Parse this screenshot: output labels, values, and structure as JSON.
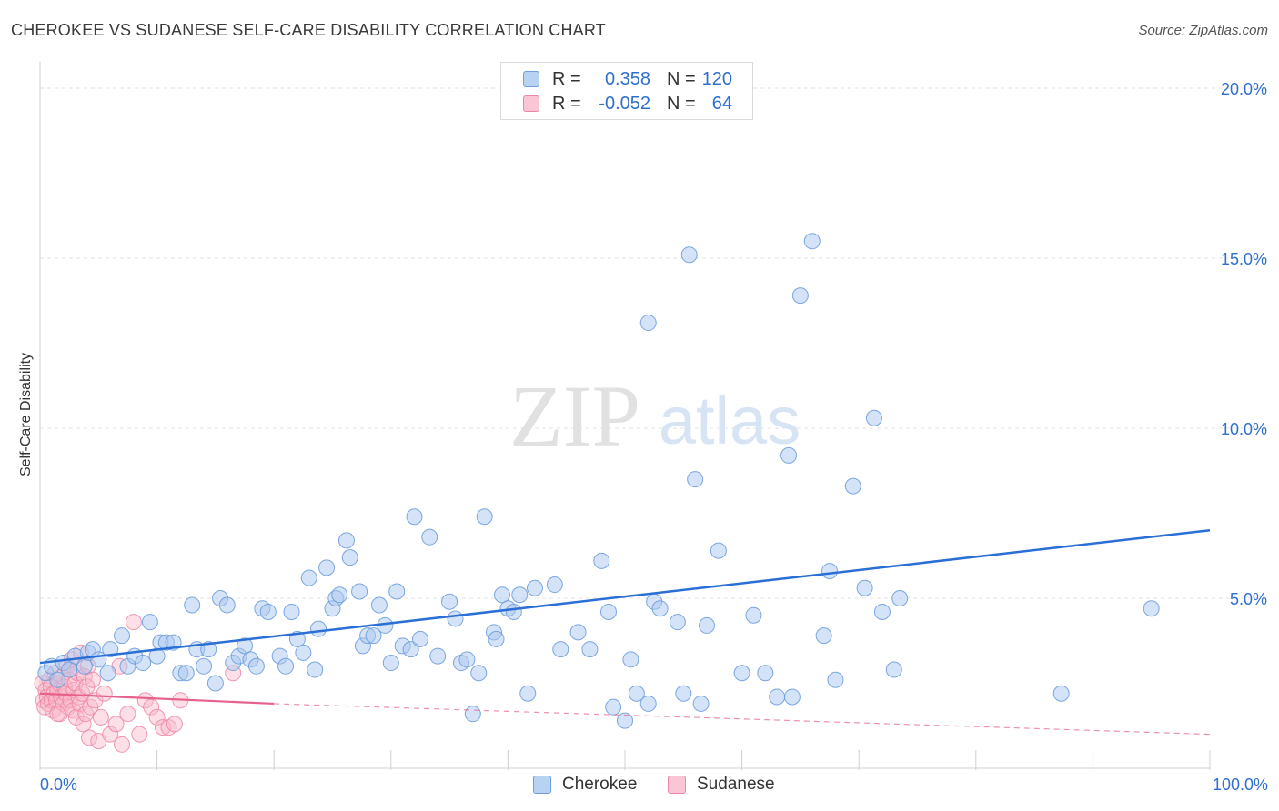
{
  "header": {
    "title": "CHEROKEE VS SUDANESE SELF-CARE DISABILITY CORRELATION CHART",
    "source": "Source: ZipAtlas.com"
  },
  "watermark": {
    "zip": "ZIP",
    "atlas": "atlas"
  },
  "legend_top": {
    "rows": [
      {
        "r_label": "R =",
        "r_value": "0.358",
        "n_label": "N =",
        "n_value": "120"
      },
      {
        "r_label": "R =",
        "r_value": "-0.052",
        "n_label": "N =",
        "n_value": "64"
      }
    ]
  },
  "legend_bottom": {
    "items": [
      "Cherokee",
      "Sudanese"
    ]
  },
  "colors": {
    "cherokee_fill": "#a9c8f0",
    "cherokee_stroke": "#6e9fdc",
    "cherokee_line": "#2a6fd6",
    "sudanese_fill": "#f8b7ca",
    "sudanese_stroke": "#ee86a5",
    "sudanese_line": "#e6628c",
    "tick_label": "#2f6fcf",
    "grid": "#e3e3e3"
  },
  "chart_data": {
    "type": "scatter",
    "title": "CHEROKEE VS SUDANESE SELF-CARE DISABILITY CORRELATION CHART",
    "xlabel": "",
    "ylabel": "Self-Care Disability",
    "xlim": [
      0,
      100
    ],
    "ylim": [
      0,
      20
    ],
    "x_tick_labels": [
      "0.0%",
      "100.0%"
    ],
    "y_ticks": [
      5,
      10,
      15,
      20
    ],
    "y_tick_labels": [
      "5.0%",
      "10.0%",
      "15.0%",
      "20.0%"
    ],
    "grid": true,
    "legend_position": "top-center",
    "series": [
      {
        "name": "Cherokee",
        "r": 0.358,
        "n": 120,
        "trend": {
          "x": [
            0,
            100
          ],
          "y": [
            3.1,
            7.0
          ],
          "style": "solid"
        },
        "points": [
          [
            0.5,
            2.8
          ],
          [
            1,
            3.0
          ],
          [
            1.5,
            2.6
          ],
          [
            2,
            3.1
          ],
          [
            2.5,
            2.9
          ],
          [
            3,
            3.3
          ],
          [
            3.8,
            3.0
          ],
          [
            4.1,
            3.4
          ],
          [
            4.5,
            3.5
          ],
          [
            5,
            3.2
          ],
          [
            5.8,
            2.8
          ],
          [
            6,
            3.5
          ],
          [
            7,
            3.9
          ],
          [
            7.5,
            3.0
          ],
          [
            8.1,
            3.3
          ],
          [
            8.8,
            3.1
          ],
          [
            9.4,
            4.3
          ],
          [
            10,
            3.3
          ],
          [
            10.3,
            3.7
          ],
          [
            10.8,
            3.7
          ],
          [
            11.4,
            3.7
          ],
          [
            12,
            2.8
          ],
          [
            12.5,
            2.8
          ],
          [
            13,
            4.8
          ],
          [
            13.4,
            3.5
          ],
          [
            14,
            3.0
          ],
          [
            14.4,
            3.5
          ],
          [
            15,
            2.5
          ],
          [
            15.4,
            5.0
          ],
          [
            16,
            4.8
          ],
          [
            16.5,
            3.1
          ],
          [
            17,
            3.3
          ],
          [
            17.5,
            3.6
          ],
          [
            18,
            3.2
          ],
          [
            18.5,
            3.0
          ],
          [
            19,
            4.7
          ],
          [
            19.5,
            4.6
          ],
          [
            20.5,
            3.3
          ],
          [
            21,
            3.0
          ],
          [
            21.5,
            4.6
          ],
          [
            22,
            3.8
          ],
          [
            22.5,
            3.4
          ],
          [
            23,
            5.6
          ],
          [
            23.5,
            2.9
          ],
          [
            23.8,
            4.1
          ],
          [
            24.5,
            5.9
          ],
          [
            25,
            4.7
          ],
          [
            25.3,
            5.0
          ],
          [
            25.6,
            5.1
          ],
          [
            26.2,
            6.7
          ],
          [
            26.5,
            6.2
          ],
          [
            27.3,
            5.2
          ],
          [
            27.6,
            3.6
          ],
          [
            28,
            3.9
          ],
          [
            28.5,
            3.9
          ],
          [
            29,
            4.8
          ],
          [
            29.5,
            4.2
          ],
          [
            30,
            3.1
          ],
          [
            30.5,
            5.2
          ],
          [
            31,
            3.6
          ],
          [
            31.7,
            3.5
          ],
          [
            32,
            7.4
          ],
          [
            32.5,
            3.8
          ],
          [
            33.3,
            6.8
          ],
          [
            34,
            3.3
          ],
          [
            35,
            4.9
          ],
          [
            35.5,
            4.4
          ],
          [
            36,
            3.1
          ],
          [
            36.5,
            3.2
          ],
          [
            37,
            1.6
          ],
          [
            37.5,
            2.8
          ],
          [
            38,
            7.4
          ],
          [
            38.8,
            4.0
          ],
          [
            39,
            3.8
          ],
          [
            39.5,
            5.1
          ],
          [
            40,
            4.7
          ],
          [
            40.5,
            4.6
          ],
          [
            41,
            5.1
          ],
          [
            41.7,
            2.2
          ],
          [
            42.3,
            5.3
          ],
          [
            44,
            5.4
          ],
          [
            44.5,
            3.5
          ],
          [
            46,
            4.0
          ],
          [
            47,
            3.5
          ],
          [
            48,
            6.1
          ],
          [
            48.6,
            4.6
          ],
          [
            49,
            1.8
          ],
          [
            50,
            1.4
          ],
          [
            50.5,
            3.2
          ],
          [
            51,
            2.2
          ],
          [
            52,
            1.9
          ],
          [
            52.5,
            4.9
          ],
          [
            53,
            4.7
          ],
          [
            54.5,
            4.3
          ],
          [
            55,
            2.2
          ],
          [
            56,
            8.5
          ],
          [
            56.5,
            1.9
          ],
          [
            57,
            4.2
          ],
          [
            58,
            6.4
          ],
          [
            60,
            2.8
          ],
          [
            61,
            4.5
          ],
          [
            62,
            2.8
          ],
          [
            63,
            2.1
          ],
          [
            64,
            9.2
          ],
          [
            64.3,
            2.1
          ],
          [
            65,
            13.9
          ],
          [
            66,
            15.5
          ],
          [
            67,
            3.9
          ],
          [
            67.5,
            5.8
          ],
          [
            68,
            2.6
          ],
          [
            69.5,
            8.3
          ],
          [
            70.5,
            5.3
          ],
          [
            71.3,
            10.3
          ],
          [
            72,
            4.6
          ],
          [
            73.5,
            5.0
          ],
          [
            73,
            2.9
          ],
          [
            87.3,
            2.2
          ],
          [
            95,
            4.7
          ],
          [
            52,
            13.1
          ],
          [
            55.5,
            15.1
          ]
        ]
      },
      {
        "name": "Sudanese",
        "r": -0.052,
        "n": 64,
        "trend": {
          "x": [
            0,
            20
          ],
          "y": [
            2.2,
            1.9
          ],
          "style": "solid",
          "extension": {
            "x": [
              20,
              100
            ],
            "y": [
              1.9,
              1.0
            ],
            "style": "dashed"
          }
        },
        "points": [
          [
            0.2,
            2.5
          ],
          [
            0.3,
            2.0
          ],
          [
            0.4,
            1.8
          ],
          [
            0.5,
            2.3
          ],
          [
            0.6,
            2.1
          ],
          [
            0.7,
            1.9
          ],
          [
            0.8,
            2.6
          ],
          [
            0.9,
            2.4
          ],
          [
            1,
            2.0
          ],
          [
            1.1,
            1.7
          ],
          [
            1.2,
            2.2
          ],
          [
            1.3,
            2.8
          ],
          [
            1.4,
            2.0
          ],
          [
            1.5,
            2.3
          ],
          [
            1.6,
            2.5
          ],
          [
            1.7,
            1.6
          ],
          [
            1.8,
            2.1
          ],
          [
            1.9,
            2.7
          ],
          [
            2,
            1.9
          ],
          [
            2.1,
            2.4
          ],
          [
            2.2,
            2.2
          ],
          [
            2.3,
            3.0
          ],
          [
            2.4,
            1.8
          ],
          [
            2.5,
            2.6
          ],
          [
            2.6,
            2.0
          ],
          [
            2.7,
            3.2
          ],
          [
            2.8,
            1.7
          ],
          [
            2.9,
            2.3
          ],
          [
            3,
            2.5
          ],
          [
            3.1,
            1.5
          ],
          [
            3.2,
            2.8
          ],
          [
            3.3,
            2.1
          ],
          [
            3.4,
            1.9
          ],
          [
            3.5,
            3.4
          ],
          [
            3.6,
            2.2
          ],
          [
            3.7,
            1.3
          ],
          [
            3.8,
            2.7
          ],
          [
            3.9,
            1.6
          ],
          [
            4,
            2.4
          ],
          [
            4.1,
            3.0
          ],
          [
            4.2,
            0.9
          ],
          [
            4.3,
            1.8
          ],
          [
            4.5,
            2.6
          ],
          [
            4.7,
            2.0
          ],
          [
            5,
            0.8
          ],
          [
            5.2,
            1.5
          ],
          [
            5.5,
            2.2
          ],
          [
            6,
            1.0
          ],
          [
            6.5,
            1.3
          ],
          [
            6.8,
            3.0
          ],
          [
            7,
            0.7
          ],
          [
            7.5,
            1.6
          ],
          [
            8,
            4.3
          ],
          [
            8.5,
            1.0
          ],
          [
            9,
            2.0
          ],
          [
            9.5,
            1.8
          ],
          [
            10,
            1.5
          ],
          [
            10.5,
            1.2
          ],
          [
            11,
            1.2
          ],
          [
            11.5,
            1.3
          ],
          [
            12,
            2.0
          ],
          [
            16.5,
            2.8
          ],
          [
            1.5,
            1.6
          ],
          [
            2.5,
            2.9
          ]
        ]
      }
    ]
  }
}
